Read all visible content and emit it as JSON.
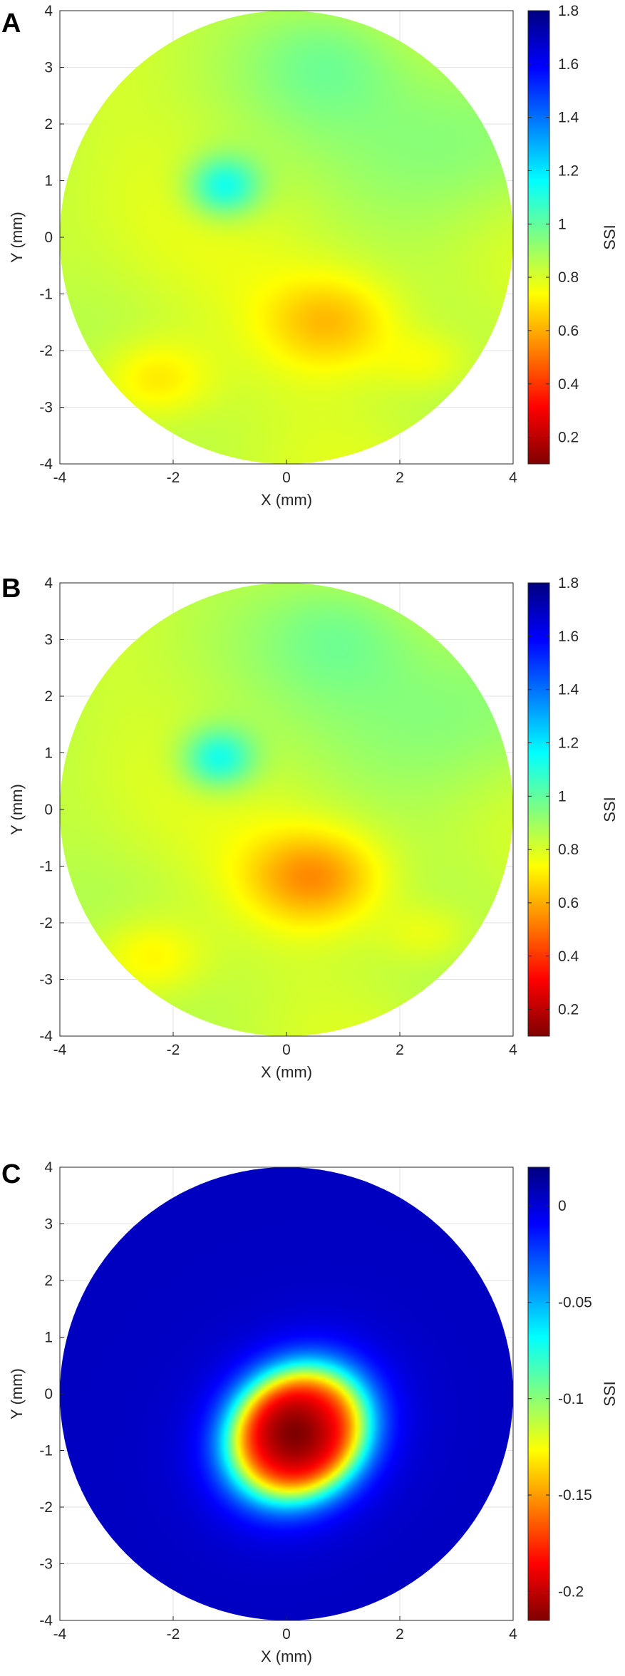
{
  "chart_data": [
    {
      "type": "heatmap",
      "panel_label": "A",
      "xlabel": "X (mm)",
      "ylabel": "Y (mm)",
      "colorbar_label": "SSI",
      "xlim": [
        -4,
        4
      ],
      "ylim": [
        -4,
        4
      ],
      "xticks": [
        -4,
        -2,
        0,
        2,
        4
      ],
      "yticks": [
        -4,
        -3,
        -2,
        -1,
        0,
        1,
        2,
        3,
        4
      ],
      "grid": true,
      "colormap": "jet-reversed (low = dark red, high = dark blue)",
      "clim": [
        0.1,
        1.8
      ],
      "colorbar_ticks": [
        0.2,
        0.4,
        0.6,
        0.8,
        1,
        1.2,
        1.4,
        1.6,
        1.8
      ],
      "domain": "circle of radius 4 mm centered at (0, 0)",
      "background_value": 0.82,
      "features": [
        {
          "kind": "high",
          "x": -1.1,
          "y": 0.9,
          "value": 1.15
        },
        {
          "kind": "high",
          "x": 3.0,
          "y": 1.5,
          "value": 0.95
        },
        {
          "kind": "high",
          "x": 0.8,
          "y": 3.2,
          "value": 0.95
        },
        {
          "kind": "low",
          "x": 0.8,
          "y": -1.5,
          "value": 0.62
        },
        {
          "kind": "low",
          "x": -2.3,
          "y": -2.5,
          "value": 0.66
        },
        {
          "kind": "low",
          "x": 2.5,
          "y": -2.2,
          "value": 0.72
        }
      ]
    },
    {
      "type": "heatmap",
      "panel_label": "B",
      "xlabel": "X (mm)",
      "ylabel": "Y (mm)",
      "colorbar_label": "SSI",
      "xlim": [
        -4,
        4
      ],
      "ylim": [
        -4,
        4
      ],
      "xticks": [
        -4,
        -2,
        0,
        2,
        4
      ],
      "yticks": [
        -4,
        -3,
        -2,
        -1,
        0,
        1,
        2,
        3,
        4
      ],
      "grid": true,
      "colormap": "jet-reversed (low = dark red, high = dark blue)",
      "clim": [
        0.1,
        1.8
      ],
      "colorbar_ticks": [
        0.2,
        0.4,
        0.6,
        0.8,
        1,
        1.2,
        1.4,
        1.6,
        1.8
      ],
      "domain": "circle of radius 4 mm centered at (0, 0)",
      "background_value": 0.83,
      "features": [
        {
          "kind": "high",
          "x": -1.2,
          "y": 0.9,
          "value": 1.15
        },
        {
          "kind": "high",
          "x": 3.0,
          "y": 1.5,
          "value": 0.95
        },
        {
          "kind": "high",
          "x": 1.0,
          "y": 3.2,
          "value": 0.95
        },
        {
          "kind": "low",
          "x": 0.5,
          "y": -1.2,
          "value": 0.55
        },
        {
          "kind": "low",
          "x": -2.4,
          "y": -2.6,
          "value": 0.68
        },
        {
          "kind": "low",
          "x": 2.5,
          "y": -2.2,
          "value": 0.73
        }
      ]
    },
    {
      "type": "heatmap",
      "panel_label": "C",
      "xlabel": "X (mm)",
      "ylabel": "Y (mm)",
      "colorbar_label": "SSI",
      "xlim": [
        -4,
        4
      ],
      "ylim": [
        -4,
        4
      ],
      "xticks": [
        -4,
        -2,
        0,
        2,
        4
      ],
      "yticks": [
        -4,
        -3,
        -2,
        -1,
        0,
        1,
        2,
        3,
        4
      ],
      "grid": true,
      "colormap": "jet-reversed (low = dark red, high = dark blue)",
      "clim": [
        -0.215,
        0.02
      ],
      "colorbar_ticks": [
        -0.2,
        -0.15,
        -0.1,
        -0.05,
        0
      ],
      "domain": "circle of radius 4 mm centered at (0, 0)",
      "background_value": 0.005,
      "features": [
        {
          "kind": "low",
          "x": 0.2,
          "y": -0.7,
          "value": -0.21
        }
      ]
    }
  ]
}
